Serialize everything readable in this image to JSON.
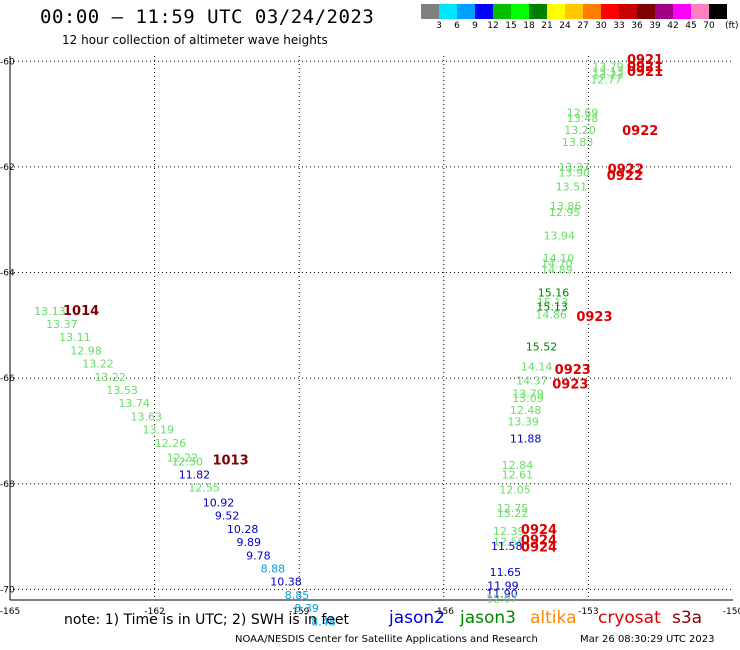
{
  "header": {
    "title": "00:00 – 11:59 UTC 03/24/2023",
    "subtitle": "12 hour collection of altimeter wave heights"
  },
  "legend": {
    "colors": [
      "#808080",
      "#00e5ff",
      "#00a0ff",
      "#0000ff",
      "#00c000",
      "#00ff00",
      "#008000",
      "#ffff00",
      "#ffc800",
      "#ff8000",
      "#ff0000",
      "#c80000",
      "#800000",
      "#a00080",
      "#ff00ff",
      "#ff80c0",
      "#000000"
    ],
    "labels": [
      "3",
      "6",
      "9",
      "12",
      "15",
      "18",
      "21",
      "24",
      "27",
      "30",
      "33",
      "36",
      "39",
      "42",
      "45",
      "70"
    ],
    "unit": "(ft)"
  },
  "chart_data": {
    "type": "scatter",
    "title": "00:00 – 11:59 UTC 03/24/2023",
    "subtitle": "12 hour collection of altimeter wave heights",
    "xlim": [
      -165,
      -150
    ],
    "ylim": [
      -70.2,
      -59.9
    ],
    "x_ticks": [
      "-165",
      "-162",
      "-159",
      "-156",
      "-153",
      "-150"
    ],
    "y_ticks": [
      "-60",
      "-62",
      "-64",
      "-66",
      "-68",
      "-70"
    ],
    "grid": true,
    "point_labels": [
      {
        "x": -152.92,
        "y": -60.17,
        "text": "13.79",
        "color": "#66dd66"
      },
      {
        "x": -152.92,
        "y": -60.27,
        "text": "13.13",
        "color": "#66dd66"
      },
      {
        "x": -152.92,
        "y": -60.33,
        "text": "13.23",
        "color": "#66dd66"
      },
      {
        "x": -152.96,
        "y": -60.42,
        "text": "12.77",
        "color": "#66dd66"
      },
      {
        "x": -153.45,
        "y": -61.05,
        "text": "12.69",
        "color": "#66dd66"
      },
      {
        "x": -153.45,
        "y": -61.15,
        "text": "13.48",
        "color": "#66dd66"
      },
      {
        "x": -153.5,
        "y": -61.38,
        "text": "13.20",
        "color": "#66dd66"
      },
      {
        "x": -153.55,
        "y": -61.6,
        "text": "13.83",
        "color": "#66dd66"
      },
      {
        "x": -153.62,
        "y": -62.08,
        "text": "13.37",
        "color": "#66dd66"
      },
      {
        "x": -153.62,
        "y": -62.18,
        "text": "13.90",
        "color": "#66dd66"
      },
      {
        "x": -153.68,
        "y": -62.45,
        "text": "13.51",
        "color": "#66dd66"
      },
      {
        "x": -153.8,
        "y": -62.82,
        "text": "13.86",
        "color": "#66dd66"
      },
      {
        "x": -153.82,
        "y": -62.93,
        "text": "12.95",
        "color": "#66dd66"
      },
      {
        "x": -153.93,
        "y": -63.37,
        "text": "13.94",
        "color": "#66dd66"
      },
      {
        "x": -153.95,
        "y": -63.8,
        "text": "14.10",
        "color": "#66dd66"
      },
      {
        "x": -153.98,
        "y": -63.9,
        "text": "14.70",
        "color": "#66dd66"
      },
      {
        "x": -153.98,
        "y": -64.02,
        "text": "14.89",
        "color": "#66dd66"
      },
      {
        "x": -154.05,
        "y": -64.45,
        "text": "15.16",
        "color": "#008000"
      },
      {
        "x": -154.07,
        "y": -64.63,
        "text": "15.13",
        "color": "#66dd66"
      },
      {
        "x": -154.08,
        "y": -64.72,
        "text": "15.13",
        "color": "#008000"
      },
      {
        "x": -154.1,
        "y": -64.87,
        "text": "14.86",
        "color": "#66dd66"
      },
      {
        "x": -154.3,
        "y": -65.48,
        "text": "15.52",
        "color": "#008000"
      },
      {
        "x": -154.4,
        "y": -65.85,
        "text": "14.14",
        "color": "#66dd66"
      },
      {
        "x": -154.5,
        "y": -66.12,
        "text": "14.37",
        "color": "#66dd66"
      },
      {
        "x": -154.58,
        "y": -66.37,
        "text": "13.79",
        "color": "#66dd66"
      },
      {
        "x": -154.58,
        "y": -66.45,
        "text": "13.09",
        "color": "#66dd66"
      },
      {
        "x": -154.63,
        "y": -66.68,
        "text": "12.48",
        "color": "#66dd66"
      },
      {
        "x": -154.68,
        "y": -66.9,
        "text": "13.39",
        "color": "#66dd66"
      },
      {
        "x": -154.63,
        "y": -67.22,
        "text": "11.88",
        "color": "#0000c8"
      },
      {
        "x": -154.8,
        "y": -67.72,
        "text": "12.84",
        "color": "#66dd66"
      },
      {
        "x": -154.8,
        "y": -67.9,
        "text": "12.61",
        "color": "#66dd66"
      },
      {
        "x": -154.85,
        "y": -68.18,
        "text": "12.05",
        "color": "#66dd66"
      },
      {
        "x": -154.9,
        "y": -68.53,
        "text": "12.75",
        "color": "#66dd66"
      },
      {
        "x": -154.9,
        "y": -68.63,
        "text": "13.22",
        "color": "#66dd66"
      },
      {
        "x": -154.98,
        "y": -68.97,
        "text": "12.39",
        "color": "#66dd66"
      },
      {
        "x": -154.98,
        "y": -69.17,
        "text": "12.56",
        "color": "#66dd66"
      },
      {
        "x": -155.02,
        "y": -69.25,
        "text": "11.58",
        "color": "#0000c8"
      },
      {
        "x": -155.05,
        "y": -69.75,
        "text": "11.65",
        "color": "#0000c8"
      },
      {
        "x": -155.1,
        "y": -70.0,
        "text": "11.99",
        "color": "#0000c8"
      },
      {
        "x": -155.12,
        "y": -70.15,
        "text": "11.90",
        "color": "#0000c8"
      },
      {
        "x": -155.12,
        "y": -70.25,
        "text": "12.07",
        "color": "#66dd66"
      },
      {
        "x": -164.5,
        "y": -64.8,
        "text": "13.13",
        "color": "#66dd66"
      },
      {
        "x": -164.25,
        "y": -65.05,
        "text": "13.37",
        "color": "#66dd66"
      },
      {
        "x": -163.98,
        "y": -65.3,
        "text": "13.11",
        "color": "#66dd66"
      },
      {
        "x": -163.75,
        "y": -65.55,
        "text": "12.98",
        "color": "#66dd66"
      },
      {
        "x": -163.5,
        "y": -65.8,
        "text": "13.22",
        "color": "#66dd66"
      },
      {
        "x": -163.25,
        "y": -66.05,
        "text": "13.22",
        "color": "#66dd66"
      },
      {
        "x": -163.0,
        "y": -66.3,
        "text": "13.53",
        "color": "#66dd66"
      },
      {
        "x": -162.75,
        "y": -66.55,
        "text": "13.74",
        "color": "#66dd66"
      },
      {
        "x": -162.5,
        "y": -66.8,
        "text": "13.63",
        "color": "#66dd66"
      },
      {
        "x": -162.25,
        "y": -67.05,
        "text": "13.19",
        "color": "#66dd66"
      },
      {
        "x": -162.0,
        "y": -67.3,
        "text": "12.26",
        "color": "#66dd66"
      },
      {
        "x": -161.75,
        "y": -67.58,
        "text": "12.22",
        "color": "#66dd66"
      },
      {
        "x": -161.65,
        "y": -67.65,
        "text": "12.50",
        "color": "#66dd66"
      },
      {
        "x": -161.5,
        "y": -67.9,
        "text": "11.82",
        "color": "#0000c8"
      },
      {
        "x": -161.3,
        "y": -68.15,
        "text": "12.55",
        "color": "#66dd66"
      },
      {
        "x": -161.0,
        "y": -68.43,
        "text": "10.92",
        "color": "#0000c8"
      },
      {
        "x": -160.75,
        "y": -68.68,
        "text": "9.52",
        "color": "#0000c8"
      },
      {
        "x": -160.5,
        "y": -68.93,
        "text": "10.28",
        "color": "#0000c8"
      },
      {
        "x": -160.3,
        "y": -69.18,
        "text": "9.89",
        "color": "#0000c8"
      },
      {
        "x": -160.1,
        "y": -69.43,
        "text": "9.78",
        "color": "#0000c8"
      },
      {
        "x": -159.8,
        "y": -69.68,
        "text": "8.88",
        "color": "#00a0e0"
      },
      {
        "x": -159.6,
        "y": -69.93,
        "text": "10.38",
        "color": "#0000c8"
      },
      {
        "x": -159.3,
        "y": -70.18,
        "text": "8.85",
        "color": "#00a0e0"
      },
      {
        "x": -159.1,
        "y": -70.43,
        "text": "8.39",
        "color": "#00a0e0"
      },
      {
        "x": -158.75,
        "y": -70.68,
        "text": "8.48",
        "color": "#00a0e0"
      }
    ],
    "pressure_labels": [
      {
        "x": -152.2,
        "y": -60.05,
        "text": "0921",
        "color": "#dd0000"
      },
      {
        "x": -152.2,
        "y": -60.18,
        "text": "0921",
        "color": "#dd0000"
      },
      {
        "x": -152.2,
        "y": -60.28,
        "text": "0921",
        "color": "#dd0000"
      },
      {
        "x": -152.3,
        "y": -61.4,
        "text": "0922",
        "color": "#dd0000"
      },
      {
        "x": -152.6,
        "y": -62.12,
        "text": "0922",
        "color": "#dd0000"
      },
      {
        "x": -152.62,
        "y": -62.25,
        "text": "0922",
        "color": "#dd0000"
      },
      {
        "x": -153.25,
        "y": -64.92,
        "text": "0923",
        "color": "#dd0000"
      },
      {
        "x": -153.7,
        "y": -65.92,
        "text": "0923",
        "color": "#dd0000"
      },
      {
        "x": -153.75,
        "y": -66.2,
        "text": "0923",
        "color": "#dd0000"
      },
      {
        "x": -154.4,
        "y": -68.95,
        "text": "0924",
        "color": "#dd0000"
      },
      {
        "x": -154.4,
        "y": -69.15,
        "text": "0924",
        "color": "#dd0000"
      },
      {
        "x": -154.4,
        "y": -69.28,
        "text": "0924",
        "color": "#dd0000"
      },
      {
        "x": -163.9,
        "y": -64.8,
        "text": "1014",
        "color": "#800000"
      },
      {
        "x": -160.8,
        "y": -67.63,
        "text": "1013",
        "color": "#800000"
      }
    ]
  },
  "footer": {
    "note": "note: 1) Time is in UTC; 2) SWH is in feet",
    "satellites": [
      {
        "name": "jason2",
        "color": "#0000dd"
      },
      {
        "name": "jason3",
        "color": "#008800"
      },
      {
        "name": "altika",
        "color": "#ff8800"
      },
      {
        "name": "cryosat",
        "color": "#dd0000"
      },
      {
        "name": "s3a",
        "color": "#880000"
      }
    ],
    "credit": "NOAA/NESDIS Center for Satellite Applications and Research",
    "timestamp": "Mar 26 08:30:29 UTC 2023"
  }
}
